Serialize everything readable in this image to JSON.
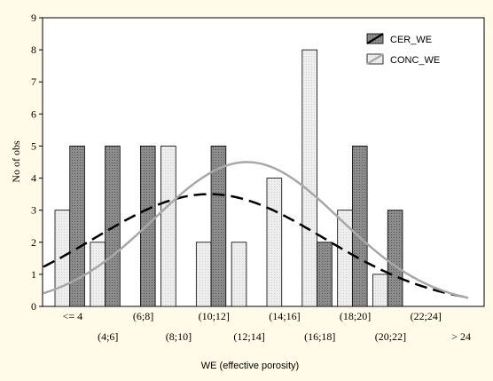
{
  "chart_data": {
    "type": "bar",
    "xlabel": "WE (effective porosity)",
    "ylabel": "No of obs",
    "ylim": [
      0,
      9
    ],
    "yticks": [
      0,
      1,
      2,
      3,
      4,
      5,
      6,
      7,
      8,
      9
    ],
    "grid": false,
    "legend_position": "top-right",
    "categories": [
      "<= 4",
      "(4;6]",
      "(6;8]",
      "(8;10]",
      "(10;12]",
      "(12;14]",
      "(14;16]",
      "(16;18]",
      "(18;20]",
      "(20;22]",
      "(22;24]",
      "> 24"
    ],
    "series": [
      {
        "name": "CER_WE",
        "values": [
          5,
          5,
          5,
          0,
          5,
          0,
          0,
          2,
          5,
          3,
          0,
          0
        ],
        "color": "#8c8c8c",
        "fit_curve_style": "dashed",
        "fit_curve_color": "#000000"
      },
      {
        "name": "CONC_WE",
        "values": [
          3,
          2,
          0,
          5,
          2,
          2,
          4,
          8,
          3,
          1,
          0,
          0
        ],
        "color": "#eeeeee",
        "fit_curve_style": "solid",
        "fit_curve_color": "#a8a8a8"
      }
    ],
    "fit_curves": [
      {
        "series": "CER_WE",
        "type": "normal",
        "peak": 3.5
      },
      {
        "series": "CONC_WE",
        "type": "normal",
        "peak": 4.5
      }
    ]
  }
}
